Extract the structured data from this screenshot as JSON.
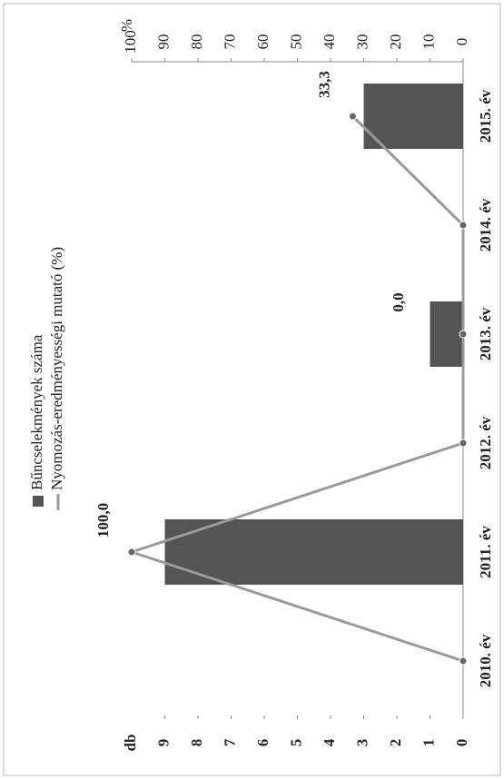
{
  "chart_data": {
    "type": "bar",
    "categories": [
      "2010. év",
      "2011. év",
      "2012. év",
      "2013. év",
      "2014. év",
      "2015. év"
    ],
    "ylabel": "db",
    "ylim": [
      0,
      10
    ],
    "yticks": [
      0,
      1,
      2,
      3,
      4,
      5,
      6,
      7,
      8,
      9
    ],
    "y2label": "%",
    "y2lim": [
      0,
      100
    ],
    "y2ticks": [
      0,
      10,
      20,
      30,
      40,
      50,
      60,
      70,
      80,
      90,
      100
    ],
    "series": [
      {
        "name": "Bűncselekmények száma",
        "type": "bar",
        "color": "#545454",
        "values": [
          0,
          9,
          0,
          1,
          0,
          3
        ]
      },
      {
        "name": "Nyomozás-eredményességi mutató (%)",
        "type": "line",
        "axis": "y2",
        "color": "#9a9a9a",
        "values": [
          0,
          100,
          0,
          0,
          0,
          33.3
        ],
        "value_labels": [
          null,
          "100,0",
          null,
          "0,0",
          null,
          "33,3"
        ]
      }
    ],
    "legend": "top"
  }
}
